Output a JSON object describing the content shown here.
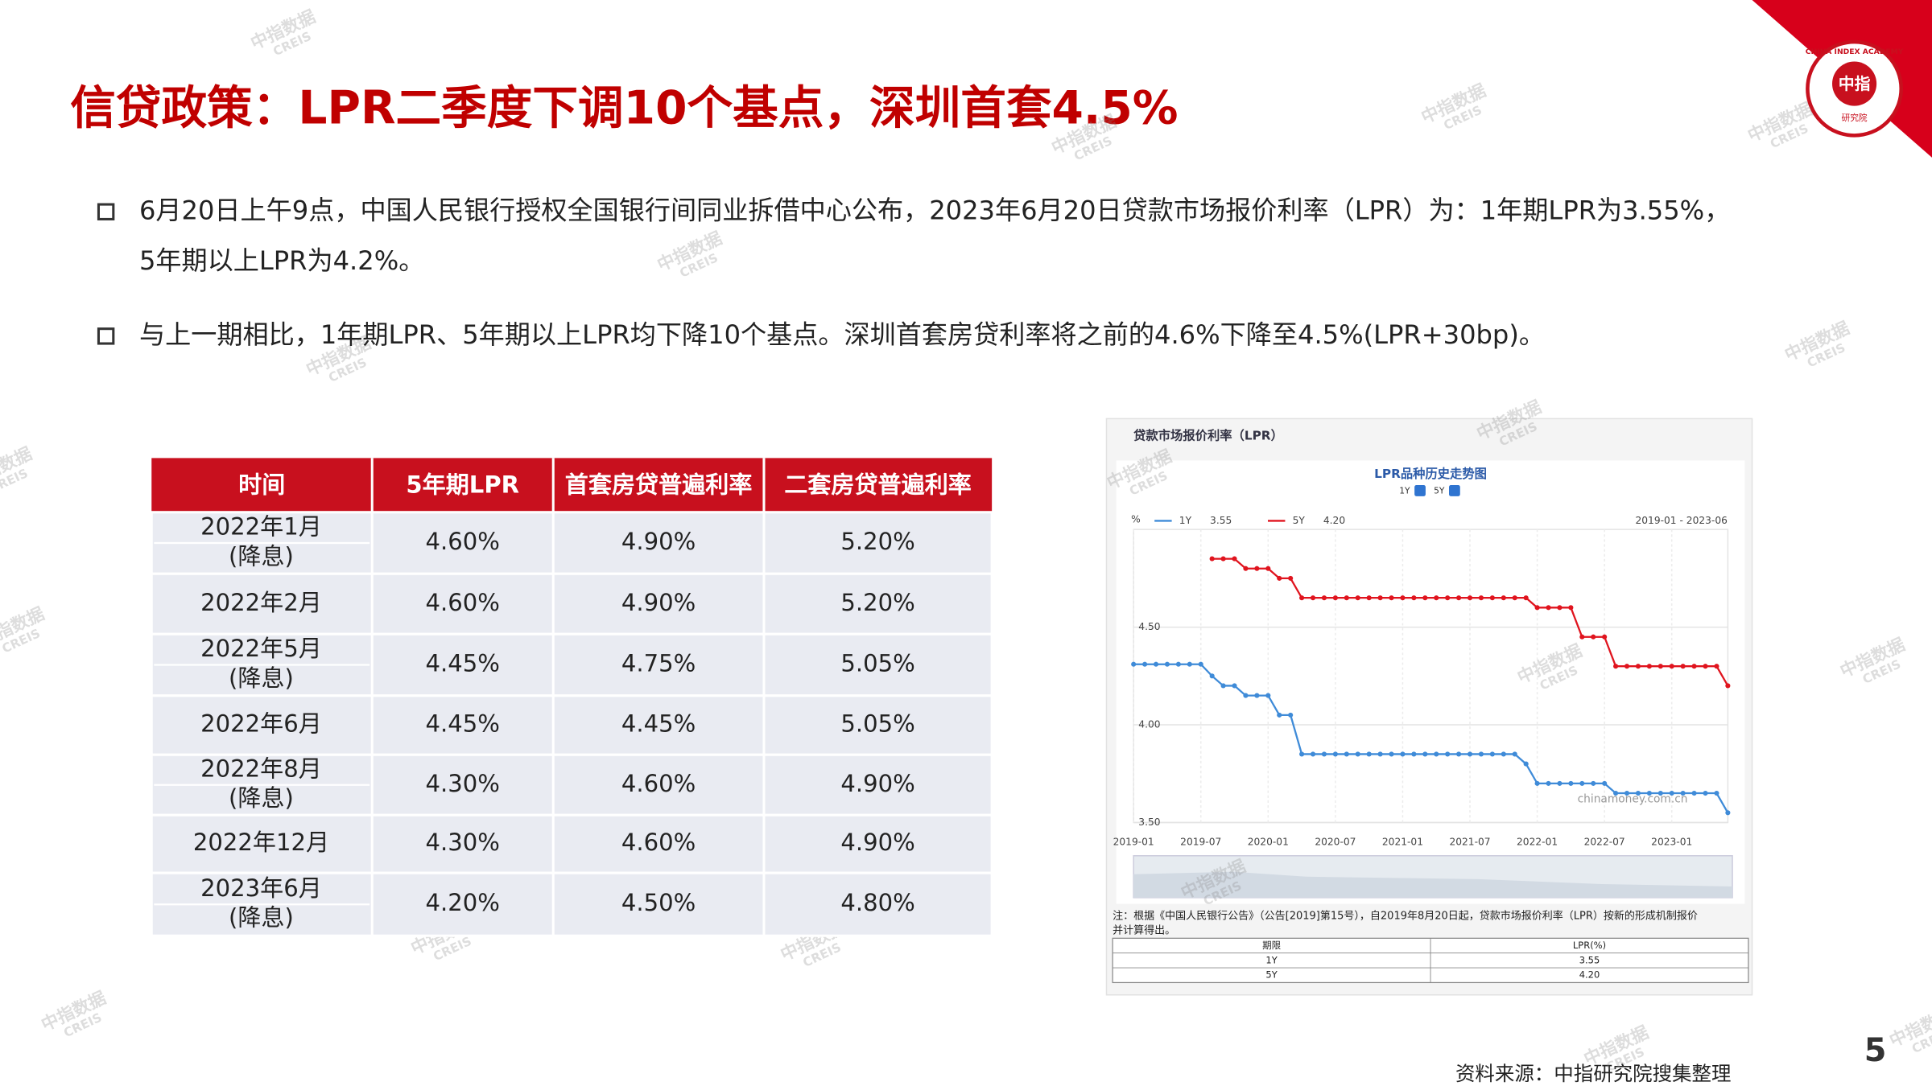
{
  "title": "信贷政策：LPR二季度下调10个基点，深圳首套4.5%",
  "bullets": [
    [
      "6月20日上午9点，中国人民银行授权全国银行间同业拆借中心公布，2023年6月20日贷款市场报价利率（LPR）为：1年期LPR为3.55%，",
      "5年期以上LPR为4.2%。"
    ],
    [
      "与上一期相比，1年期LPR、5年期以上LPR均下降10个基点。深圳首套房贷利率将之前的4.6%下降至4.5%(LPR+30bp)。"
    ]
  ],
  "table": {
    "header": [
      "时间",
      "5年期LPR",
      "首套房贷普遍利率",
      "二套房贷普遍利率"
    ],
    "rows": [
      {
        "period": "2022年1月",
        "note": "(降息)",
        "cells": [
          "4.60%",
          "4.90%",
          "5.20%"
        ]
      },
      {
        "period": "2022年2月",
        "cells": [
          "4.60%",
          "4.90%",
          "5.20%"
        ]
      },
      {
        "period": "2022年5月",
        "note": "(降息)",
        "cells": [
          "4.45%",
          "4.75%",
          "5.05%"
        ]
      },
      {
        "period": "2022年6月",
        "cells": [
          "4.45%",
          "4.45%",
          "5.05%"
        ]
      },
      {
        "period": "2022年8月",
        "note": "(降息)",
        "cells": [
          "4.30%",
          "4.60%",
          "4.90%"
        ]
      },
      {
        "period": "2022年12月",
        "cells": [
          "4.30%",
          "4.60%",
          "4.90%"
        ]
      },
      {
        "period": "2023年6月",
        "note": "(降息)",
        "cells": [
          "4.20%",
          "4.50%",
          "4.80%"
        ]
      }
    ]
  },
  "chart_data": {
    "type": "line",
    "header": "贷款市场报价利率（LPR）",
    "title": "LPR品种历史走势图",
    "toggles": [
      "1Y",
      "5Y"
    ],
    "range_label": "2019-01 - 2023-06",
    "y_unit": "%",
    "site": "chinamoney.com.cn",
    "categories": [
      "2019-01",
      null,
      null,
      null,
      null,
      null,
      "2019-07",
      null,
      null,
      null,
      null,
      null,
      "2020-01",
      null,
      null,
      null,
      null,
      null,
      "2020-07",
      null,
      null,
      null,
      null,
      null,
      "2021-01",
      null,
      null,
      null,
      null,
      null,
      "2021-07",
      null,
      null,
      null,
      null,
      null,
      "2022-01",
      null,
      null,
      null,
      null,
      null,
      "2022-07",
      null,
      null,
      null,
      null,
      null,
      "2023-01",
      null,
      null,
      null,
      null,
      null
    ],
    "series": [
      {
        "name": "1Y",
        "latest": "3.55",
        "color": "#3f8bd8",
        "values": [
          4.31,
          4.31,
          4.31,
          4.31,
          4.31,
          4.31,
          4.31,
          4.25,
          4.2,
          4.2,
          4.15,
          4.15,
          4.15,
          4.05,
          4.05,
          3.85,
          3.85,
          3.85,
          3.85,
          3.85,
          3.85,
          3.85,
          3.85,
          3.85,
          3.85,
          3.85,
          3.85,
          3.85,
          3.85,
          3.85,
          3.85,
          3.85,
          3.85,
          3.85,
          3.85,
          3.8,
          3.7,
          3.7,
          3.7,
          3.7,
          3.7,
          3.7,
          3.7,
          3.65,
          3.65,
          3.65,
          3.65,
          3.65,
          3.65,
          3.65,
          3.65,
          3.65,
          3.65,
          3.55
        ]
      },
      {
        "name": "5Y",
        "latest": "4.20",
        "color": "#e0141e",
        "values": [
          null,
          null,
          null,
          null,
          null,
          null,
          null,
          4.85,
          4.85,
          4.85,
          4.8,
          4.8,
          4.8,
          4.75,
          4.75,
          4.65,
          4.65,
          4.65,
          4.65,
          4.65,
          4.65,
          4.65,
          4.65,
          4.65,
          4.65,
          4.65,
          4.65,
          4.65,
          4.65,
          4.65,
          4.65,
          4.65,
          4.65,
          4.65,
          4.65,
          4.65,
          4.6,
          4.6,
          4.6,
          4.6,
          4.45,
          4.45,
          4.45,
          4.3,
          4.3,
          4.3,
          4.3,
          4.3,
          4.3,
          4.3,
          4.3,
          4.3,
          4.3,
          4.2
        ]
      }
    ],
    "ylim": [
      3.5,
      5.0
    ],
    "yticks": [
      {
        "value": 3.5,
        "label": "3.50"
      },
      {
        "value": 4.0,
        "label": "4.00"
      },
      {
        "value": 4.5,
        "label": "4.50"
      }
    ],
    "grid": true,
    "note": [
      "注：根据《中国人民银行公告》（公告[2019]第15号），自2019年8月20日起，贷款市场报价利率（LPR）按新的形成机制报价",
      "并计算得出。"
    ],
    "table": {
      "header": [
        "期限",
        "LPR(%)"
      ],
      "rows": [
        [
          "1Y",
          "3.55"
        ],
        [
          "5Y",
          "4.20"
        ]
      ]
    }
  },
  "logo": {
    "cn": "中指",
    "sub": "研究院",
    "en": "CHINA INDEX ACADEMY"
  },
  "watermark": {
    "cn": "中指数据",
    "en": "CREIS"
  },
  "source": "资料来源：中指研究院搜集整理",
  "page_number": "5"
}
